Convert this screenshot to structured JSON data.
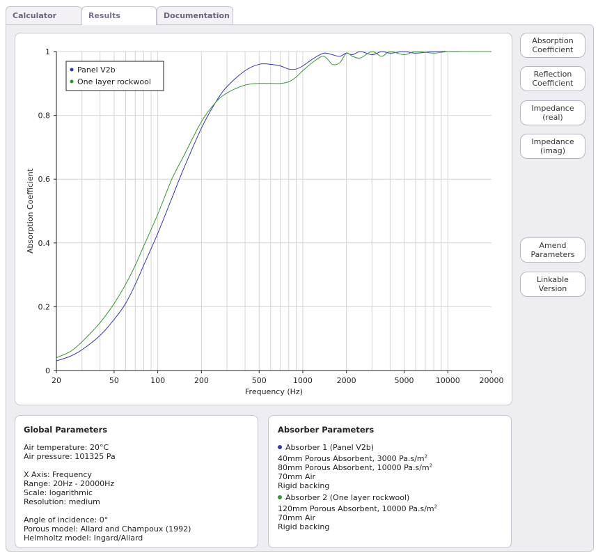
{
  "tabs": [
    {
      "label": "Calculator",
      "active": false
    },
    {
      "label": "Results",
      "active": true
    },
    {
      "label": "Documentation",
      "active": false
    }
  ],
  "side_buttons": [
    "Absorption\nCoefficient",
    "Reflection\nCoefficient",
    "Impedance\n(real)",
    "Impedance\n(imag)",
    "Amend\nParameters",
    "Linkable\nVersion"
  ],
  "colors": {
    "panel_v2b": "#3333bb",
    "rockwool": "#2e9a2e"
  },
  "chart_data": {
    "type": "line",
    "xlabel": "Frequency (Hz)",
    "ylabel": "Absorption Coefficient",
    "xscale": "log",
    "xlim": [
      20,
      20000
    ],
    "ylim": [
      0,
      1
    ],
    "grid": true,
    "legend_position": "top-left",
    "x_ticks": [
      20,
      50,
      100,
      200,
      500,
      1000,
      2000,
      5000,
      10000,
      20000
    ],
    "y_ticks": [
      0,
      0.2,
      0.4,
      0.6,
      0.8,
      1
    ],
    "series": [
      {
        "name": "Panel V2b",
        "color": "#3333bb",
        "x": [
          20,
          25,
          30,
          40,
          50,
          60,
          70,
          80,
          100,
          125,
          150,
          200,
          250,
          300,
          400,
          500,
          600,
          700,
          800,
          900,
          1000,
          1200,
          1400,
          1600,
          1800,
          2000,
          2200,
          2500,
          3000,
          3500,
          4000,
          5000,
          6000,
          8000,
          10000,
          12500,
          16000,
          20000
        ],
        "y": [
          0.03,
          0.045,
          0.065,
          0.11,
          0.16,
          0.21,
          0.27,
          0.33,
          0.43,
          0.54,
          0.63,
          0.76,
          0.84,
          0.89,
          0.94,
          0.96,
          0.96,
          0.955,
          0.945,
          0.945,
          0.955,
          0.98,
          0.995,
          0.99,
          0.985,
          0.995,
          0.99,
          1.0,
          0.99,
          1.0,
          0.995,
          1.0,
          0.995,
          1.0,
          1.0,
          1.0,
          1.0,
          1.0
        ]
      },
      {
        "name": "One layer rockwool",
        "color": "#2e9a2e",
        "x": [
          20,
          25,
          30,
          40,
          50,
          60,
          70,
          80,
          100,
          125,
          150,
          200,
          250,
          300,
          400,
          500,
          600,
          700,
          800,
          900,
          1000,
          1200,
          1400,
          1600,
          1800,
          2000,
          2200,
          2500,
          3000,
          3500,
          4000,
          5000,
          6000,
          8000,
          10000,
          12500,
          16000,
          20000
        ],
        "y": [
          0.04,
          0.06,
          0.09,
          0.15,
          0.21,
          0.27,
          0.33,
          0.39,
          0.49,
          0.6,
          0.67,
          0.78,
          0.84,
          0.87,
          0.895,
          0.9,
          0.9,
          0.9,
          0.905,
          0.92,
          0.94,
          0.97,
          0.985,
          0.96,
          0.965,
          0.995,
          0.985,
          0.98,
          1.0,
          0.985,
          1.0,
          0.99,
          1.0,
          0.995,
          1.0,
          1.0,
          1.0,
          1.0
        ]
      }
    ]
  },
  "global_params": {
    "title": "Global Parameters",
    "lines": [
      "Air temperature: 20°C",
      "Air pressure: 101325 Pa",
      "",
      "X Axis: Frequency",
      "Range: 20Hz - 20000Hz",
      "Scale: logarithmic",
      "Resolution: medium",
      "",
      "Angle of incidence: 0°",
      "Porous model: Allard and Champoux (1992)",
      "Helmholtz model: Ingard/Allard"
    ]
  },
  "absorber_params": {
    "title": "Absorber Parameters",
    "absorbers": [
      {
        "label": "Absorber 1 (Panel V2b)",
        "color": "#3333bb",
        "layers": [
          "40mm Porous Absorbent, 3000 Pa.s/m",
          "80mm Porous Absorbent, 10000 Pa.s/m",
          "70mm Air",
          "Rigid backing"
        ],
        "superscripts": [
          "2",
          "2",
          "",
          ""
        ]
      },
      {
        "label": "Absorber 2 (One layer rockwool)",
        "color": "#2e9a2e",
        "layers": [
          "120mm Porous Absorbent, 10000 Pa.s/m",
          "70mm Air",
          "Rigid backing"
        ],
        "superscripts": [
          "2",
          "",
          ""
        ]
      }
    ]
  }
}
